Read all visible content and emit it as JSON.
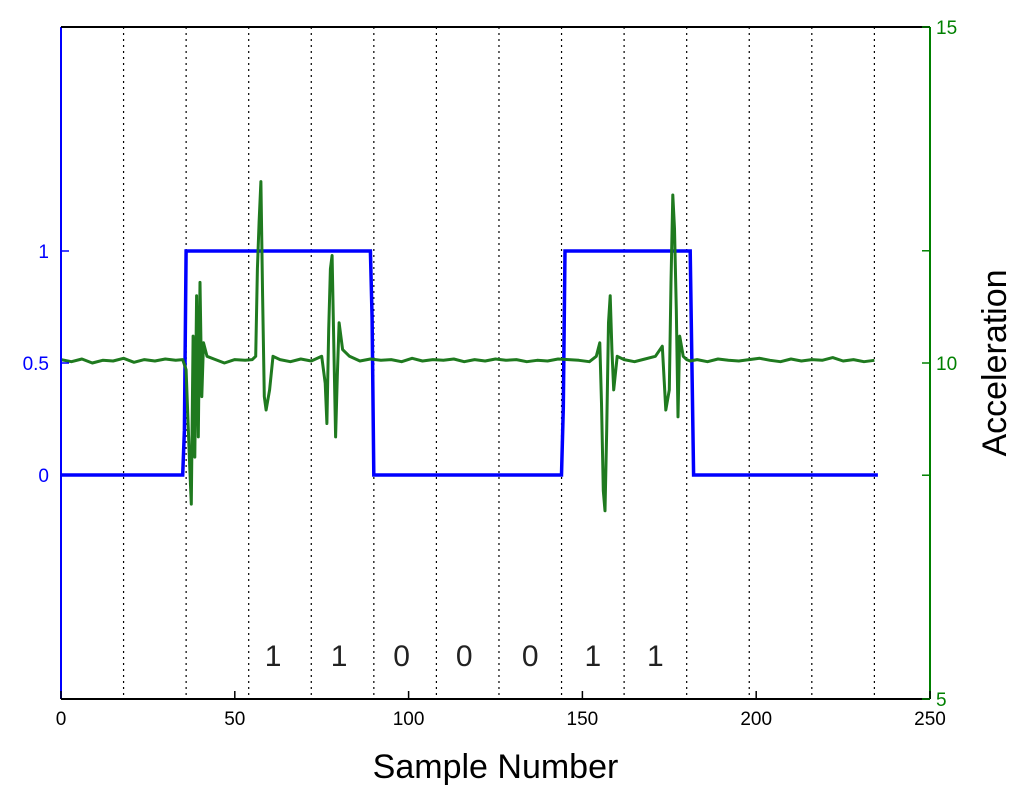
{
  "chart_data": {
    "type": "line",
    "xlabel": "Sample Number",
    "ylabel_left": "",
    "ylabel_right": "Acceleration",
    "xlim": [
      0,
      250
    ],
    "ylim_left": [
      -1,
      2
    ],
    "ylim_right": [
      5,
      15
    ],
    "x_ticks": [
      0,
      50,
      100,
      150,
      200,
      250
    ],
    "y_left_ticks": [
      0,
      0.5,
      1
    ],
    "y_left_tick_labels": [
      "0",
      "0.5",
      "1"
    ],
    "y_right_ticks": [
      5,
      10,
      15
    ],
    "y_right_minor_ticks": [
      8.33,
      11.67
    ],
    "bit_boundaries": [
      18,
      36,
      54,
      72,
      90,
      108,
      126,
      144,
      162,
      180,
      198,
      216,
      234
    ],
    "bit_labels": [
      {
        "x": 61,
        "text": "1"
      },
      {
        "x": 80,
        "text": "1"
      },
      {
        "x": 98,
        "text": "0"
      },
      {
        "x": 116,
        "text": "0"
      },
      {
        "x": 135,
        "text": "0"
      },
      {
        "x": 153,
        "text": "1"
      },
      {
        "x": 171,
        "text": "1"
      }
    ],
    "colors": {
      "left_axis": "#0000ff",
      "right_axis": "#008000",
      "square_wave": "#0000ff",
      "acceleration": "#1f7a1f"
    },
    "series": [
      {
        "axis": "left",
        "x": [
          0,
          35,
          35.5,
          36,
          89,
          89.5,
          90,
          144,
          144.5,
          145,
          181,
          181.5,
          182,
          235
        ],
        "y": [
          0,
          0,
          0.2,
          1,
          1,
          0.7,
          0,
          0,
          0.3,
          1,
          1,
          0.5,
          0,
          0
        ]
      },
      {
        "axis": "right",
        "x": [
          0,
          3,
          6,
          9,
          12,
          15,
          18,
          21,
          24,
          27,
          30,
          33,
          35,
          36,
          37,
          37.5,
          38,
          38.5,
          39,
          39.5,
          40,
          40.5,
          41,
          42,
          44,
          47,
          50,
          53,
          55,
          56,
          56.5,
          57,
          57.5,
          58,
          58.5,
          59,
          60,
          61,
          63,
          66,
          69,
          72,
          75,
          76,
          76.5,
          77,
          77.5,
          78,
          78.5,
          79,
          79.5,
          80,
          81,
          83,
          86,
          89,
          92,
          95,
          98,
          101,
          104,
          107,
          110,
          113,
          116,
          119,
          122,
          125,
          128,
          131,
          134,
          137,
          140,
          143,
          146,
          149,
          152,
          154,
          155,
          155.5,
          156,
          156.5,
          157,
          157.5,
          158,
          158.5,
          159,
          160,
          162,
          165,
          168,
          171,
          173,
          174,
          175,
          175.5,
          176,
          176.5,
          177,
          177.5,
          178,
          179,
          180,
          181,
          183,
          186,
          189,
          192,
          195,
          198,
          201,
          204,
          207,
          210,
          213,
          216,
          219,
          222,
          225,
          228,
          231,
          234
        ],
        "y": [
          10.05,
          10.02,
          10.06,
          10.0,
          10.04,
          10.03,
          10.07,
          10.01,
          10.05,
          10.03,
          10.06,
          10.04,
          10.05,
          9.9,
          8.5,
          7.9,
          10.4,
          8.6,
          11.0,
          8.9,
          11.2,
          9.5,
          10.3,
          10.1,
          10.06,
          10.0,
          10.05,
          10.04,
          10.05,
          10.1,
          11.4,
          12.1,
          12.7,
          11.0,
          9.5,
          9.3,
          9.6,
          10.1,
          10.05,
          10.02,
          10.06,
          10.03,
          10.1,
          9.7,
          9.1,
          10.5,
          11.4,
          11.6,
          10.2,
          8.9,
          9.8,
          10.6,
          10.2,
          10.1,
          10.03,
          10.06,
          10.04,
          10.05,
          10.02,
          10.07,
          10.03,
          10.05,
          10.04,
          10.06,
          10.02,
          10.05,
          10.03,
          10.06,
          10.04,
          10.05,
          10.02,
          10.04,
          10.03,
          10.06,
          10.05,
          10.04,
          10.02,
          10.1,
          10.3,
          9.4,
          8.1,
          7.8,
          9.0,
          10.6,
          11.0,
          10.2,
          9.6,
          10.1,
          10.05,
          10.02,
          10.06,
          10.1,
          10.25,
          9.3,
          9.6,
          11.2,
          12.5,
          12.0,
          10.8,
          9.2,
          10.4,
          10.1,
          10.05,
          10.03,
          10.05,
          10.02,
          10.06,
          10.04,
          10.03,
          10.05,
          10.07,
          10.04,
          10.02,
          10.06,
          10.03,
          10.05,
          10.04,
          10.08,
          10.03,
          10.05,
          10.02,
          10.04
        ]
      }
    ]
  }
}
